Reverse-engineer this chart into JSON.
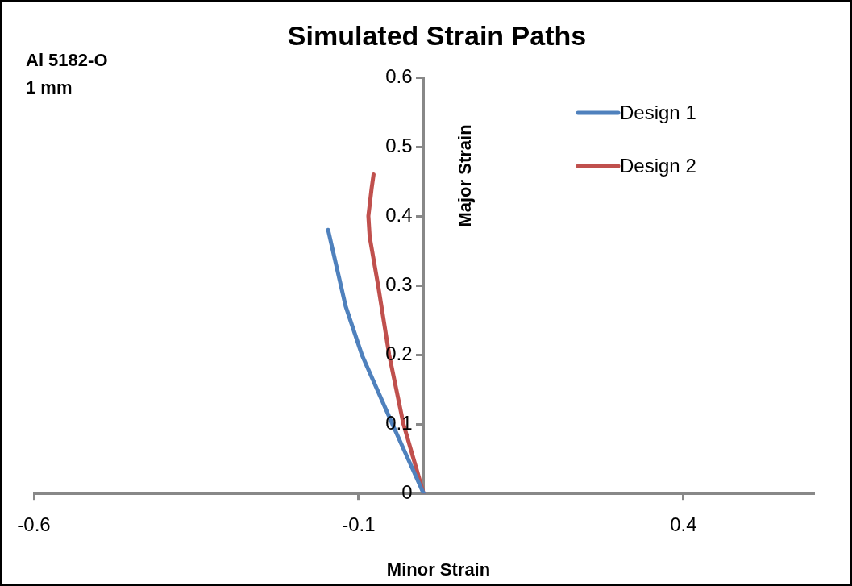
{
  "chart_data": {
    "type": "line",
    "title": "Simulated Strain Paths",
    "xlabel": "Minor Strain",
    "ylabel": "Major Strain",
    "annotations": [
      "Al 5182-O",
      "1 mm"
    ],
    "series": [
      {
        "name": "Design 1",
        "color": "#4f81bd",
        "x": [
          0,
          -0.048,
          -0.095,
          -0.12,
          -0.147
        ],
        "values": [
          0,
          0.1,
          0.2,
          0.27,
          0.38
        ]
      },
      {
        "name": "Design 2",
        "color": "#c0504d",
        "x": [
          0,
          -0.031,
          -0.053,
          -0.07,
          -0.083,
          -0.085,
          -0.08,
          -0.077
        ],
        "values": [
          0,
          0.1,
          0.2,
          0.3,
          0.37,
          0.4,
          0.44,
          0.46
        ]
      }
    ],
    "xlim": [
      -0.6,
      0.6
    ],
    "xticks": [
      -0.6,
      -0.1,
      0.4
    ],
    "ylim": [
      0,
      0.6
    ],
    "yticks": [
      0,
      0.1,
      0.2,
      0.3,
      0.4,
      0.5,
      0.6
    ],
    "grid": false,
    "legend": "top right",
    "marker": "none",
    "line_style": "solid"
  }
}
